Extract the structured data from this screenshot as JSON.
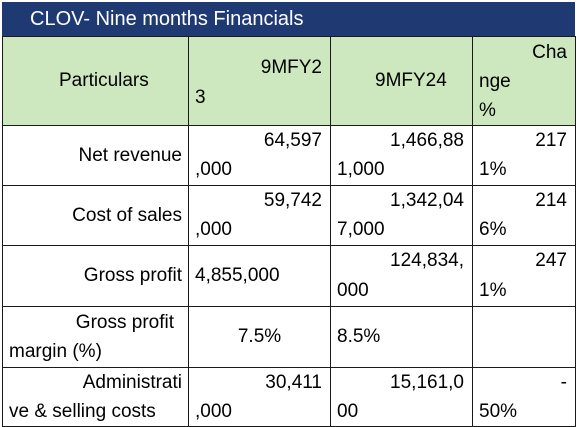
{
  "title": "CLOV- Nine months Financials",
  "header": {
    "particulars": "Particulars",
    "col_23_line1": "9MFY2",
    "col_23_line2": "3",
    "col_24": "9MFY24",
    "change_line1": "Cha",
    "change_line2": "nge",
    "change_line3": "%"
  },
  "rows": [
    {
      "label": "Net revenue",
      "v23_a": "64,597",
      "v23_b": ",000",
      "v24_a": "1,466,88",
      "v24_b": "1,000",
      "chg_a": "217",
      "chg_b": "1%"
    },
    {
      "label": "Cost of sales",
      "v23_a": "59,742",
      "v23_b": ",000",
      "v24_a": "1,342,04",
      "v24_b": "7,000",
      "chg_a": "214",
      "chg_b": "6%"
    },
    {
      "label": "Gross profit",
      "v23": "4,855,000",
      "v24_a": "124,834,",
      "v24_b": "000",
      "chg_a": "247",
      "chg_b": "1%"
    },
    {
      "label_a": "Gross profit",
      "label_b": "margin (%)",
      "v23": "7.5%",
      "v24": "8.5%",
      "chg": ""
    },
    {
      "label_a": "Administrati",
      "label_b": "ve & selling costs",
      "v23_a": "30,411",
      "v23_b": ",000",
      "v24_a": "15,161,0",
      "v24_b": "00",
      "chg_a": "-",
      "chg_b": "50%"
    }
  ]
}
